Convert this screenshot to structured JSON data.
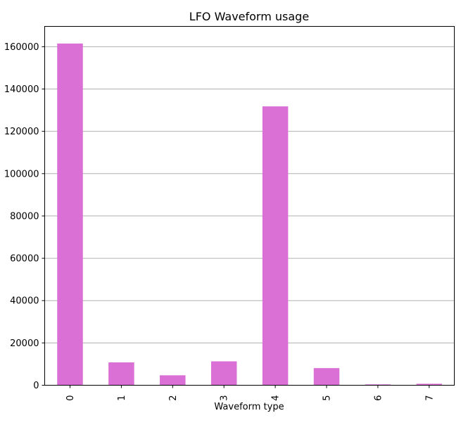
{
  "chart_data": {
    "type": "bar",
    "title": "LFO Waveform usage",
    "xlabel": "Waveform type",
    "ylabel": "",
    "categories": [
      "0",
      "1",
      "2",
      "3",
      "4",
      "5",
      "6",
      "7"
    ],
    "values": [
      161500,
      10800,
      4700,
      11300,
      131800,
      8100,
      400,
      700
    ],
    "ylim": [
      0,
      169600
    ],
    "yticks": [
      0,
      20000,
      40000,
      60000,
      80000,
      100000,
      120000,
      140000,
      160000
    ],
    "grid": "y",
    "legend": "none",
    "bar_color": "#da70d6"
  }
}
